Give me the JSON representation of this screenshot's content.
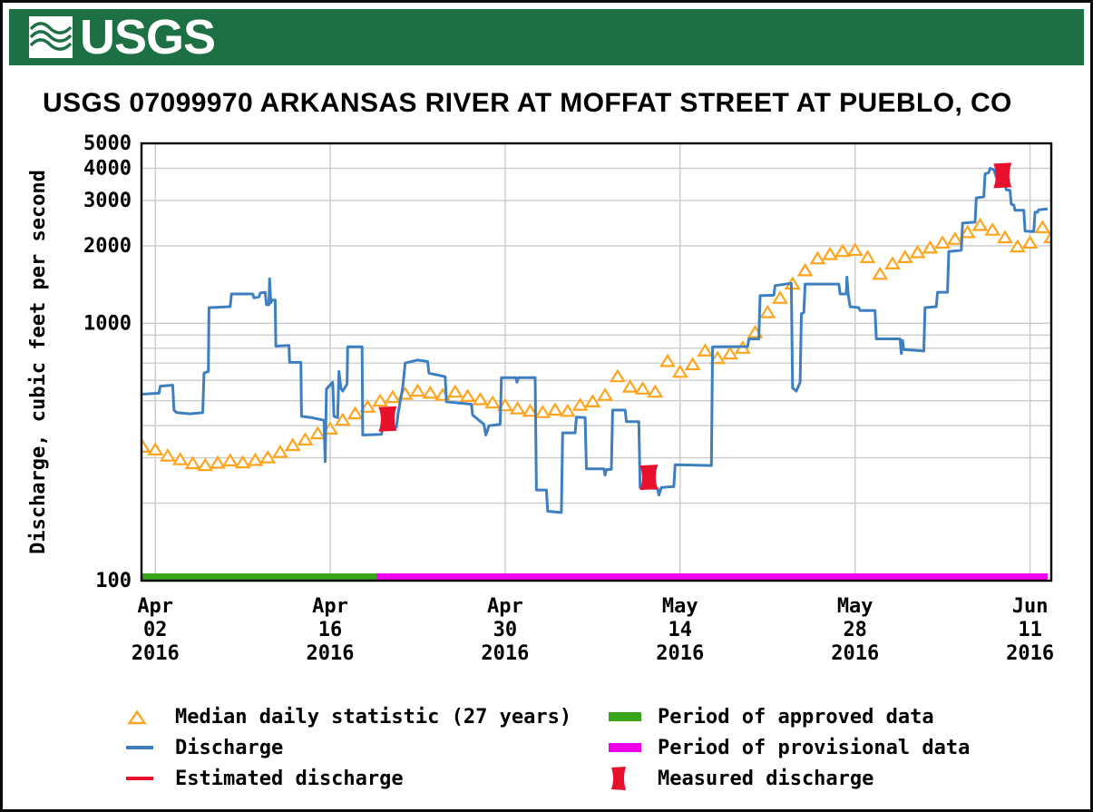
{
  "header": {
    "logo_text": "USGS",
    "banner_color": "#1d7044",
    "title": "USGS 07099970 ARKANSAS RIVER AT MOFFAT STREET AT PUEBLO, CO"
  },
  "chart_data": {
    "type": "line",
    "title": "USGS 07099970 ARKANSAS RIVER AT MOFFAT STREET AT PUEBLO, CO",
    "grid_color": "#cbcbcb",
    "legend_position": "bottom",
    "y_axis": {
      "label": "Discharge, cubic feet per second",
      "scale": "log",
      "min": 100,
      "max": 5000,
      "tick_labels": [
        "5000",
        "4000",
        "3000",
        "2000",
        "1000",
        "100"
      ],
      "tick_values": [
        5000,
        4000,
        3000,
        2000,
        1000,
        100
      ],
      "gridline_values": [
        200,
        300,
        400,
        500,
        600,
        700,
        800,
        900,
        1000,
        2000,
        3000,
        4000,
        5000
      ]
    },
    "x_axis": {
      "note": "t = days since Apr 02 2016",
      "start_day_offset": -1.1,
      "end_day_offset": 71.7,
      "ticks": [
        {
          "t": 0,
          "line1": "Apr",
          "line2": "02",
          "line3": "2016"
        },
        {
          "t": 14,
          "line1": "Apr",
          "line2": "16",
          "line3": "2016"
        },
        {
          "t": 28,
          "line1": "Apr",
          "line2": "30",
          "line3": "2016"
        },
        {
          "t": 42,
          "line1": "May",
          "line2": "14",
          "line3": "2016"
        },
        {
          "t": 56,
          "line1": "May",
          "line2": "28",
          "line3": "2016"
        },
        {
          "t": 70,
          "line1": "Jun",
          "line2": "11",
          "line3": "2016"
        }
      ]
    },
    "series": {
      "discharge": {
        "name": "Discharge",
        "color": "#3e7fc1",
        "units": "cfs",
        "points": [
          [
            -1.1,
            530
          ],
          [
            0.3,
            535
          ],
          [
            0.4,
            570
          ],
          [
            1.4,
            575
          ],
          [
            1.5,
            460
          ],
          [
            1.7,
            450
          ],
          [
            2.8,
            445
          ],
          [
            3.8,
            450
          ],
          [
            3.9,
            640
          ],
          [
            4.25,
            650
          ],
          [
            4.3,
            1150
          ],
          [
            6.0,
            1160
          ],
          [
            6.1,
            1300
          ],
          [
            7.8,
            1300
          ],
          [
            7.9,
            1255
          ],
          [
            8.3,
            1265
          ],
          [
            8.4,
            1310
          ],
          [
            8.8,
            1320
          ],
          [
            8.9,
            1180
          ],
          [
            9.1,
            1180
          ],
          [
            9.15,
            1490
          ],
          [
            9.25,
            1200
          ],
          [
            9.35,
            1230
          ],
          [
            9.6,
            1230
          ],
          [
            9.65,
            815
          ],
          [
            10.7,
            820
          ],
          [
            10.75,
            705
          ],
          [
            11.65,
            705
          ],
          [
            11.7,
            435
          ],
          [
            12.5,
            430
          ],
          [
            13.5,
            420
          ],
          [
            13.6,
            290
          ],
          [
            13.7,
            555
          ],
          [
            14.2,
            590
          ],
          [
            14.3,
            435
          ],
          [
            14.6,
            430
          ],
          [
            14.7,
            650
          ],
          [
            14.85,
            560
          ],
          [
            15.0,
            545
          ],
          [
            15.35,
            580
          ],
          [
            15.4,
            810
          ],
          [
            16.55,
            810
          ],
          [
            16.6,
            368
          ],
          [
            18.1,
            370
          ],
          [
            18.2,
            390
          ],
          [
            19.3,
            395
          ],
          [
            19.45,
            450
          ],
          [
            19.8,
            560
          ],
          [
            20.0,
            700
          ],
          [
            21.0,
            720
          ],
          [
            21.8,
            710
          ],
          [
            21.9,
            640
          ],
          [
            23.2,
            620
          ],
          [
            23.3,
            495
          ],
          [
            25.3,
            485
          ],
          [
            25.4,
            440
          ],
          [
            26.3,
            405
          ],
          [
            26.45,
            368
          ],
          [
            26.6,
            385
          ],
          [
            26.7,
            400
          ],
          [
            27.6,
            405
          ],
          [
            27.7,
            615
          ],
          [
            28.85,
            615
          ],
          [
            28.95,
            590
          ],
          [
            29.05,
            615
          ],
          [
            30.4,
            615
          ],
          [
            30.5,
            225
          ],
          [
            31.3,
            225
          ],
          [
            31.4,
            186
          ],
          [
            32.5,
            184
          ],
          [
            32.6,
            375
          ],
          [
            33.6,
            375
          ],
          [
            33.7,
            432
          ],
          [
            34.4,
            430
          ],
          [
            34.5,
            272
          ],
          [
            35.9,
            272
          ],
          [
            36.0,
            257
          ],
          [
            36.1,
            270
          ],
          [
            36.5,
            271
          ],
          [
            36.6,
            460
          ],
          [
            37.6,
            460
          ],
          [
            37.7,
            415
          ],
          [
            38.7,
            415
          ],
          [
            38.8,
            230
          ],
          [
            40.2,
            228
          ],
          [
            40.3,
            215
          ],
          [
            40.5,
            230
          ],
          [
            41.5,
            232
          ],
          [
            41.6,
            282
          ],
          [
            44.5,
            280
          ],
          [
            44.6,
            810
          ],
          [
            47.4,
            812
          ],
          [
            47.5,
            868
          ],
          [
            48.3,
            870
          ],
          [
            48.4,
            1280
          ],
          [
            49.5,
            1285
          ],
          [
            49.6,
            1400
          ],
          [
            50.9,
            1430
          ],
          [
            51.0,
            560
          ],
          [
            51.3,
            545
          ],
          [
            51.6,
            590
          ],
          [
            51.7,
            1090
          ],
          [
            51.9,
            1100
          ],
          [
            52.0,
            1420
          ],
          [
            54.7,
            1420
          ],
          [
            54.8,
            1300
          ],
          [
            55.3,
            1300
          ],
          [
            55.35,
            1510
          ],
          [
            55.45,
            1300
          ],
          [
            55.6,
            1160
          ],
          [
            56.3,
            1150
          ],
          [
            56.4,
            1120
          ],
          [
            57.6,
            1120
          ],
          [
            57.7,
            870
          ],
          [
            59.6,
            870
          ],
          [
            59.7,
            762
          ],
          [
            59.8,
            858
          ],
          [
            59.9,
            790
          ],
          [
            61.5,
            780
          ],
          [
            61.6,
            1150
          ],
          [
            62.5,
            1160
          ],
          [
            62.6,
            1320
          ],
          [
            63.4,
            1320
          ],
          [
            63.5,
            1900
          ],
          [
            64.5,
            1920
          ],
          [
            64.6,
            2450
          ],
          [
            65.6,
            2470
          ],
          [
            65.7,
            3070
          ],
          [
            66.3,
            3100
          ],
          [
            66.4,
            3800
          ],
          [
            66.7,
            3850
          ],
          [
            66.8,
            4000
          ],
          [
            67.1,
            3950
          ],
          [
            67.3,
            3700
          ],
          [
            68.0,
            3500
          ],
          [
            68.1,
            3300
          ],
          [
            68.4,
            3280
          ],
          [
            68.5,
            2900
          ],
          [
            68.7,
            2880
          ],
          [
            68.8,
            2750
          ],
          [
            69.5,
            2750
          ],
          [
            69.6,
            2280
          ],
          [
            70.3,
            2270
          ],
          [
            70.4,
            2700
          ],
          [
            70.6,
            2700
          ],
          [
            70.7,
            2760
          ],
          [
            71.4,
            2780
          ]
        ]
      },
      "median": {
        "name": "Median daily statistic (27 years)",
        "color": "#ffa41c",
        "units": "cfs",
        "points": [
          [
            -1,
            330
          ],
          [
            0,
            322
          ],
          [
            1,
            305
          ],
          [
            2,
            295
          ],
          [
            3,
            285
          ],
          [
            4,
            280
          ],
          [
            5,
            286
          ],
          [
            6,
            292
          ],
          [
            7,
            287
          ],
          [
            8,
            293
          ],
          [
            9,
            300
          ],
          [
            10,
            315
          ],
          [
            11,
            335
          ],
          [
            12,
            352
          ],
          [
            13,
            372
          ],
          [
            14,
            388
          ],
          [
            15,
            420
          ],
          [
            16,
            445
          ],
          [
            17,
            472
          ],
          [
            18,
            498
          ],
          [
            19,
            515
          ],
          [
            20,
            530
          ],
          [
            21,
            545
          ],
          [
            22,
            535
          ],
          [
            23,
            525
          ],
          [
            24,
            540
          ],
          [
            25,
            520
          ],
          [
            26,
            505
          ],
          [
            27,
            490
          ],
          [
            28,
            478
          ],
          [
            29,
            465
          ],
          [
            30,
            455
          ],
          [
            31,
            450
          ],
          [
            32,
            460
          ],
          [
            33,
            455
          ],
          [
            34,
            480
          ],
          [
            35,
            495
          ],
          [
            36,
            525
          ],
          [
            37,
            620
          ],
          [
            38,
            565
          ],
          [
            39,
            555
          ],
          [
            40,
            540
          ],
          [
            41,
            710
          ],
          [
            42,
            645
          ],
          [
            43,
            690
          ],
          [
            44,
            780
          ],
          [
            45,
            730
          ],
          [
            46,
            760
          ],
          [
            47,
            800
          ],
          [
            48,
            920
          ],
          [
            49,
            1100
          ],
          [
            50,
            1250
          ],
          [
            51,
            1420
          ],
          [
            52,
            1600
          ],
          [
            53,
            1780
          ],
          [
            54,
            1850
          ],
          [
            55,
            1900
          ],
          [
            56,
            1920
          ],
          [
            57,
            1800
          ],
          [
            58,
            1550
          ],
          [
            59,
            1700
          ],
          [
            60,
            1800
          ],
          [
            61,
            1880
          ],
          [
            62,
            1960
          ],
          [
            63,
            2050
          ],
          [
            64,
            2120
          ],
          [
            65,
            2250
          ],
          [
            66,
            2400
          ],
          [
            67,
            2300
          ],
          [
            68,
            2150
          ],
          [
            69,
            1980
          ],
          [
            70,
            2050
          ],
          [
            71,
            2350
          ],
          [
            71.7,
            2150
          ]
        ]
      },
      "estimated": {
        "name": "Estimated discharge",
        "color": "#e8112d",
        "units": "cfs",
        "points": []
      },
      "measured": {
        "name": "Measured discharge",
        "color": "#e8112d",
        "units": "cfs",
        "points": [
          [
            18.6,
            425
          ],
          [
            39.5,
            252
          ],
          [
            67.8,
            3750
          ]
        ]
      }
    },
    "periods": [
      {
        "name": "Period of approved data",
        "color": "#38a51a",
        "t0": -1.1,
        "t1": 17.7
      },
      {
        "name": "Period of provisional data",
        "color": "#ee00ee",
        "t0": 17.7,
        "t1": 71.4
      }
    ]
  }
}
